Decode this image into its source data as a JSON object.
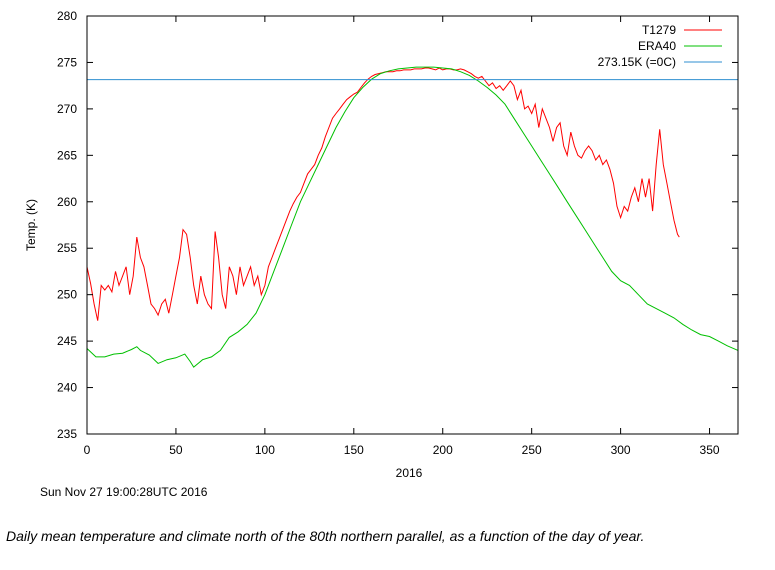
{
  "timestamp": "Sun Nov 27 19:00:28UTC 2016",
  "caption": "Daily mean temperature and climate north of the 80th northern parallel, as a function of the day of year.",
  "chart_data": {
    "type": "line",
    "title": "",
    "xlabel": "2016",
    "ylabel": "Temp. (K)",
    "xlim": [
      0,
      366
    ],
    "ylim": [
      235,
      280
    ],
    "x_ticks": [
      0,
      50,
      100,
      150,
      200,
      250,
      300,
      350
    ],
    "y_ticks": [
      235,
      240,
      245,
      250,
      255,
      260,
      265,
      270,
      275,
      280
    ],
    "grid": false,
    "legend_position": "top-right",
    "series": [
      {
        "name": "T1279",
        "color": "#ff0000",
        "points": [
          [
            0,
            253
          ],
          [
            2,
            251.2
          ],
          [
            4,
            249
          ],
          [
            6,
            247.2
          ],
          [
            8,
            251
          ],
          [
            10,
            250.5
          ],
          [
            12,
            251
          ],
          [
            14,
            250.3
          ],
          [
            16,
            252.5
          ],
          [
            18,
            251
          ],
          [
            20,
            252
          ],
          [
            22,
            253
          ],
          [
            24,
            250
          ],
          [
            26,
            252
          ],
          [
            28,
            256.2
          ],
          [
            30,
            254
          ],
          [
            32,
            253
          ],
          [
            34,
            251
          ],
          [
            36,
            249
          ],
          [
            38,
            248.5
          ],
          [
            40,
            247.8
          ],
          [
            42,
            249
          ],
          [
            44,
            249.5
          ],
          [
            46,
            248
          ],
          [
            48,
            250
          ],
          [
            50,
            252
          ],
          [
            52,
            254
          ],
          [
            54,
            257
          ],
          [
            56,
            256.5
          ],
          [
            58,
            254
          ],
          [
            60,
            251
          ],
          [
            62,
            249
          ],
          [
            64,
            252
          ],
          [
            66,
            250
          ],
          [
            68,
            249
          ],
          [
            70,
            248.5
          ],
          [
            72,
            256.8
          ],
          [
            74,
            254
          ],
          [
            76,
            250
          ],
          [
            78,
            248.5
          ],
          [
            80,
            253
          ],
          [
            82,
            252
          ],
          [
            84,
            250
          ],
          [
            86,
            253
          ],
          [
            88,
            251
          ],
          [
            90,
            252
          ],
          [
            92,
            253
          ],
          [
            94,
            251
          ],
          [
            96,
            252
          ],
          [
            98,
            250
          ],
          [
            100,
            251
          ],
          [
            102,
            253
          ],
          [
            104,
            254
          ],
          [
            106,
            255
          ],
          [
            108,
            256
          ],
          [
            110,
            257
          ],
          [
            112,
            258
          ],
          [
            114,
            259
          ],
          [
            116,
            259.8
          ],
          [
            118,
            260.5
          ],
          [
            120,
            261
          ],
          [
            122,
            262
          ],
          [
            124,
            263
          ],
          [
            126,
            263.5
          ],
          [
            128,
            264
          ],
          [
            130,
            265
          ],
          [
            132,
            265.8
          ],
          [
            134,
            267
          ],
          [
            136,
            268
          ],
          [
            138,
            269
          ],
          [
            140,
            269.5
          ],
          [
            142,
            270
          ],
          [
            144,
            270.5
          ],
          [
            146,
            271
          ],
          [
            148,
            271.3
          ],
          [
            150,
            271.6
          ],
          [
            152,
            271.8
          ],
          [
            154,
            272.3
          ],
          [
            156,
            272.8
          ],
          [
            158,
            273.2
          ],
          [
            160,
            273.5
          ],
          [
            162,
            273.7
          ],
          [
            164,
            273.8
          ],
          [
            166,
            273.9
          ],
          [
            168,
            274
          ],
          [
            170,
            274
          ],
          [
            172,
            274
          ],
          [
            174,
            274.1
          ],
          [
            176,
            274.1
          ],
          [
            178,
            274.2
          ],
          [
            180,
            274.2
          ],
          [
            182,
            274.2
          ],
          [
            184,
            274.3
          ],
          [
            186,
            274.3
          ],
          [
            188,
            274.3
          ],
          [
            190,
            274.4
          ],
          [
            192,
            274.4
          ],
          [
            194,
            274.3
          ],
          [
            196,
            274.2
          ],
          [
            198,
            274.4
          ],
          [
            200,
            274.2
          ],
          [
            202,
            274.3
          ],
          [
            204,
            274.3
          ],
          [
            206,
            274.2
          ],
          [
            208,
            274.2
          ],
          [
            210,
            274.3
          ],
          [
            212,
            274.2
          ],
          [
            214,
            274
          ],
          [
            216,
            273.8
          ],
          [
            218,
            273.5
          ],
          [
            220,
            273.3
          ],
          [
            222,
            273.5
          ],
          [
            224,
            273
          ],
          [
            226,
            272.5
          ],
          [
            228,
            272.8
          ],
          [
            230,
            272.2
          ],
          [
            232,
            272.5
          ],
          [
            234,
            272
          ],
          [
            236,
            272.5
          ],
          [
            238,
            273
          ],
          [
            240,
            272.5
          ],
          [
            242,
            271
          ],
          [
            244,
            272
          ],
          [
            246,
            270
          ],
          [
            248,
            270.3
          ],
          [
            250,
            269.5
          ],
          [
            252,
            270.5
          ],
          [
            254,
            268
          ],
          [
            256,
            270
          ],
          [
            258,
            269
          ],
          [
            260,
            268
          ],
          [
            262,
            266.5
          ],
          [
            264,
            268
          ],
          [
            266,
            268.5
          ],
          [
            268,
            266
          ],
          [
            270,
            265
          ],
          [
            272,
            267.5
          ],
          [
            274,
            266
          ],
          [
            276,
            265
          ],
          [
            278,
            264.7
          ],
          [
            280,
            265.5
          ],
          [
            282,
            266
          ],
          [
            284,
            265.5
          ],
          [
            286,
            264.5
          ],
          [
            288,
            265
          ],
          [
            290,
            264
          ],
          [
            292,
            264.5
          ],
          [
            294,
            263.5
          ],
          [
            296,
            262
          ],
          [
            298,
            259.5
          ],
          [
            300,
            258.3
          ],
          [
            302,
            259.5
          ],
          [
            304,
            259
          ],
          [
            306,
            260.5
          ],
          [
            308,
            261.5
          ],
          [
            310,
            260
          ],
          [
            312,
            262.5
          ],
          [
            314,
            260.5
          ],
          [
            316,
            262.5
          ],
          [
            318,
            259
          ],
          [
            320,
            264
          ],
          [
            322,
            267.8
          ],
          [
            324,
            264
          ],
          [
            326,
            262
          ],
          [
            328,
            260
          ],
          [
            330,
            258
          ],
          [
            332,
            256.5
          ],
          [
            333,
            256.2
          ]
        ]
      },
      {
        "name": "ERA40",
        "color": "#00c000",
        "points": [
          [
            0,
            244.2
          ],
          [
            5,
            243.3
          ],
          [
            10,
            243.3
          ],
          [
            15,
            243.6
          ],
          [
            20,
            243.7
          ],
          [
            25,
            244.1
          ],
          [
            28,
            244.4
          ],
          [
            30,
            244
          ],
          [
            35,
            243.5
          ],
          [
            40,
            242.6
          ],
          [
            45,
            243
          ],
          [
            50,
            243.2
          ],
          [
            55,
            243.6
          ],
          [
            58,
            242.8
          ],
          [
            60,
            242.2
          ],
          [
            65,
            243
          ],
          [
            70,
            243.3
          ],
          [
            75,
            244
          ],
          [
            80,
            245.4
          ],
          [
            85,
            246
          ],
          [
            90,
            246.8
          ],
          [
            95,
            248
          ],
          [
            100,
            250
          ],
          [
            105,
            252.5
          ],
          [
            110,
            255
          ],
          [
            115,
            257.5
          ],
          [
            120,
            260
          ],
          [
            125,
            262
          ],
          [
            130,
            264
          ],
          [
            135,
            266
          ],
          [
            140,
            268
          ],
          [
            145,
            269.7
          ],
          [
            150,
            271.2
          ],
          [
            155,
            272.3
          ],
          [
            160,
            273.2
          ],
          [
            165,
            273.8
          ],
          [
            170,
            274.1
          ],
          [
            175,
            274.3
          ],
          [
            180,
            274.4
          ],
          [
            185,
            274.5
          ],
          [
            190,
            274.5
          ],
          [
            195,
            274.5
          ],
          [
            200,
            274.4
          ],
          [
            205,
            274.3
          ],
          [
            210,
            274
          ],
          [
            215,
            273.6
          ],
          [
            220,
            273
          ],
          [
            225,
            272.3
          ],
          [
            230,
            271.5
          ],
          [
            235,
            270.5
          ],
          [
            240,
            269
          ],
          [
            245,
            267.5
          ],
          [
            250,
            266
          ],
          [
            255,
            264.5
          ],
          [
            260,
            263
          ],
          [
            265,
            261.5
          ],
          [
            270,
            260
          ],
          [
            275,
            258.5
          ],
          [
            280,
            257
          ],
          [
            285,
            255.5
          ],
          [
            290,
            254
          ],
          [
            295,
            252.5
          ],
          [
            300,
            251.5
          ],
          [
            305,
            251
          ],
          [
            310,
            250
          ],
          [
            315,
            249
          ],
          [
            320,
            248.5
          ],
          [
            325,
            248
          ],
          [
            330,
            247.5
          ],
          [
            335,
            246.8
          ],
          [
            340,
            246.2
          ],
          [
            345,
            245.7
          ],
          [
            350,
            245.5
          ],
          [
            355,
            245
          ],
          [
            360,
            244.5
          ],
          [
            366,
            244
          ]
        ]
      },
      {
        "name": "273.15K (=0C)",
        "color": "#2f8fd0",
        "points": [
          [
            0,
            273.15
          ],
          [
            366,
            273.15
          ]
        ]
      }
    ]
  }
}
